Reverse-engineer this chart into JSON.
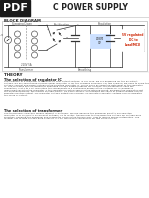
{
  "bg_color": "#ffffff",
  "pdf_bg": "#1a1a1a",
  "pdf_text": "PDF",
  "title_main": "C POWER SUPPLY",
  "section_block": "BLOCK DIAGRAM",
  "label_stepping": "Stepping Down",
  "label_rect": "Rectification",
  "label_reg": "Regulation",
  "label_smooth": "Smoothing",
  "label_transformer": "220V 5A\nTransformer",
  "label_output": "5V regulated\nDC to\nLoad/MCU",
  "label_regulator": "L7805\nCV",
  "theory_head": "THEORY",
  "reg_head": "The selection of regulator IC",
  "reg_body": "The selection of a regulator IC depends on your output voltage. In our case, we are designing for the 5V output\nvoltage, we will select fixed LM7805 linear regulator IC for the charging purposes. For this filling in, we need to know the\nvoltage, current and power ratings of the selected regulator IC. This is done by using the datasheet of the regulator\nIC. The following are the important operating voltage output diagram for LM7805:The maximum is 7805 pin\nconnection is at 4 to 1.5A regulation the components is a continuous design at the voltages for a changes is\nlower built circuit of the regulator. If the regulator in actual signal of the filtering circuit, amplifies the regulation but\nthe acknowledgment, the electric voltage output. On each LM7805, V0 indicates the value of output voltage and V0\nindicates positive output. Vin regulator voltage output can LM7805, V0 indicates regulator voltage and V0 indicates\nthe value of output.",
  "trans_head": "The selection of transformer",
  "trans_body": "The transformer selection means rating it in all terms. We pre-advance the minimum input to our selected\nregulator IC is 7V (due to 2V dropout voltage). So to rectify, transformer to step down the voltage for voltage-wise\nselection. Knowing the minimum and maximum value of the transformer, how to reduce bridge rectification. The\nrectifier has to step voltage drop across it is 1.4V. We need a component for this value of 0.03."
}
